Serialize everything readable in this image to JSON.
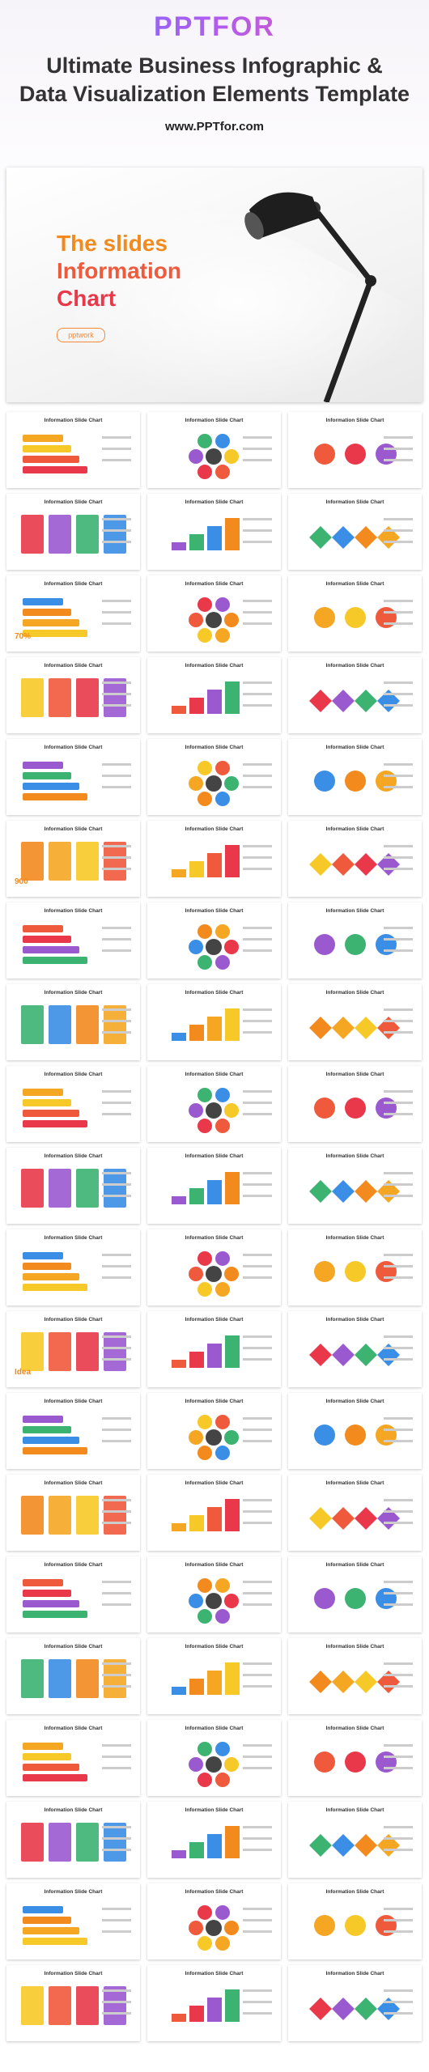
{
  "header": {
    "logo": "PPTFOR",
    "title_lines": [
      "Ultimate Business Infographic &",
      "Data Visualization Elements Template"
    ],
    "url": "www.PPTfor.com"
  },
  "hero": {
    "title_lines": [
      "The slides",
      "Information",
      "Chart"
    ],
    "button": "pptwork"
  },
  "thumbnails": [
    {
      "title": "Information Slide Chart"
    },
    {
      "title": "Information Slide Chart"
    },
    {
      "title": "Information Slide Chart"
    },
    {
      "title": "Information Slide Chart"
    },
    {
      "title": "Information Slide Chart"
    },
    {
      "title": "Information Slide Chart"
    },
    {
      "title": "Information Slide Chart",
      "label": "70%"
    },
    {
      "title": "Information Slide Chart"
    },
    {
      "title": "Information Slide Chart"
    },
    {
      "title": "Information Slide Chart"
    },
    {
      "title": "Information Slide Chart"
    },
    {
      "title": "Information Slide Chart"
    },
    {
      "title": "Information Slide Chart"
    },
    {
      "title": "Information Slide Chart"
    },
    {
      "title": "Information Slide Chart"
    },
    {
      "title": "Information Slide Chart",
      "label": "900"
    },
    {
      "title": "Information Slide Chart"
    },
    {
      "title": "Information Slide Chart"
    },
    {
      "title": "Information Slide Chart"
    },
    {
      "title": "Information Slide Chart"
    },
    {
      "title": "Information Slide Chart"
    },
    {
      "title": "Information Slide Chart"
    },
    {
      "title": "Information Slide Chart"
    },
    {
      "title": "Information Slide Chart"
    },
    {
      "title": "Information Slide Chart"
    },
    {
      "title": "Information Slide Chart"
    },
    {
      "title": "Information Slide Chart"
    },
    {
      "title": "Information Slide Chart"
    },
    {
      "title": "Information Slide Chart"
    },
    {
      "title": "Information Slide Chart"
    },
    {
      "title": "Information Slide Chart"
    },
    {
      "title": "Information Slide Chart"
    },
    {
      "title": "Information Slide Chart"
    },
    {
      "title": "Information Slide Chart",
      "label": "Idea"
    },
    {
      "title": "Information Slide Chart"
    },
    {
      "title": "Information Slide Chart"
    },
    {
      "title": "Information Slide Chart"
    },
    {
      "title": "Information Slide Chart"
    },
    {
      "title": "Information Slide Chart"
    },
    {
      "title": "Information Slide Chart"
    },
    {
      "title": "Information Slide Chart"
    },
    {
      "title": "Information Slide Chart"
    },
    {
      "title": "Information Slide Chart"
    },
    {
      "title": "Information Slide Chart"
    },
    {
      "title": "Information Slide Chart"
    },
    {
      "title": "Information Slide Chart"
    },
    {
      "title": "Information Slide Chart"
    },
    {
      "title": "Information Slide Chart"
    },
    {
      "title": "Information Slide Chart"
    },
    {
      "title": "Information Slide Chart"
    },
    {
      "title": "Information Slide Chart"
    },
    {
      "title": "Information Slide Chart"
    },
    {
      "title": "Information Slide Chart"
    },
    {
      "title": "Information Slide Chart"
    },
    {
      "title": "Information Slide Chart"
    },
    {
      "title": "Information Slide Chart"
    },
    {
      "title": "Information Slide Chart"
    },
    {
      "title": "Information Slide Chart"
    },
    {
      "title": "Information Slide Chart"
    },
    {
      "title": "Information Slide Chart"
    }
  ]
}
